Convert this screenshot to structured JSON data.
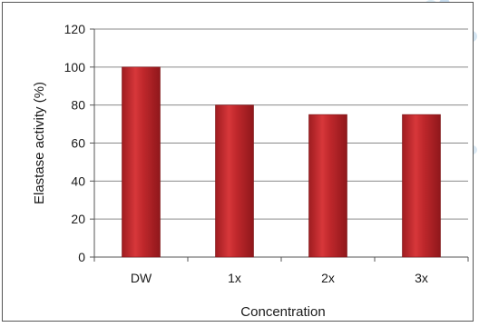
{
  "chart_data": {
    "type": "bar",
    "title": "",
    "xlabel": "Concentration",
    "ylabel": "Elastase activity (%)",
    "categories": [
      "DW",
      "1x",
      "2x",
      "3x"
    ],
    "values": [
      100,
      80,
      75,
      75
    ],
    "ylim": [
      0,
      120
    ],
    "yticks": [
      "0",
      "20",
      "40",
      "60",
      "80",
      "100",
      "120"
    ],
    "grid": true,
    "bar_color": "#c0282c"
  }
}
